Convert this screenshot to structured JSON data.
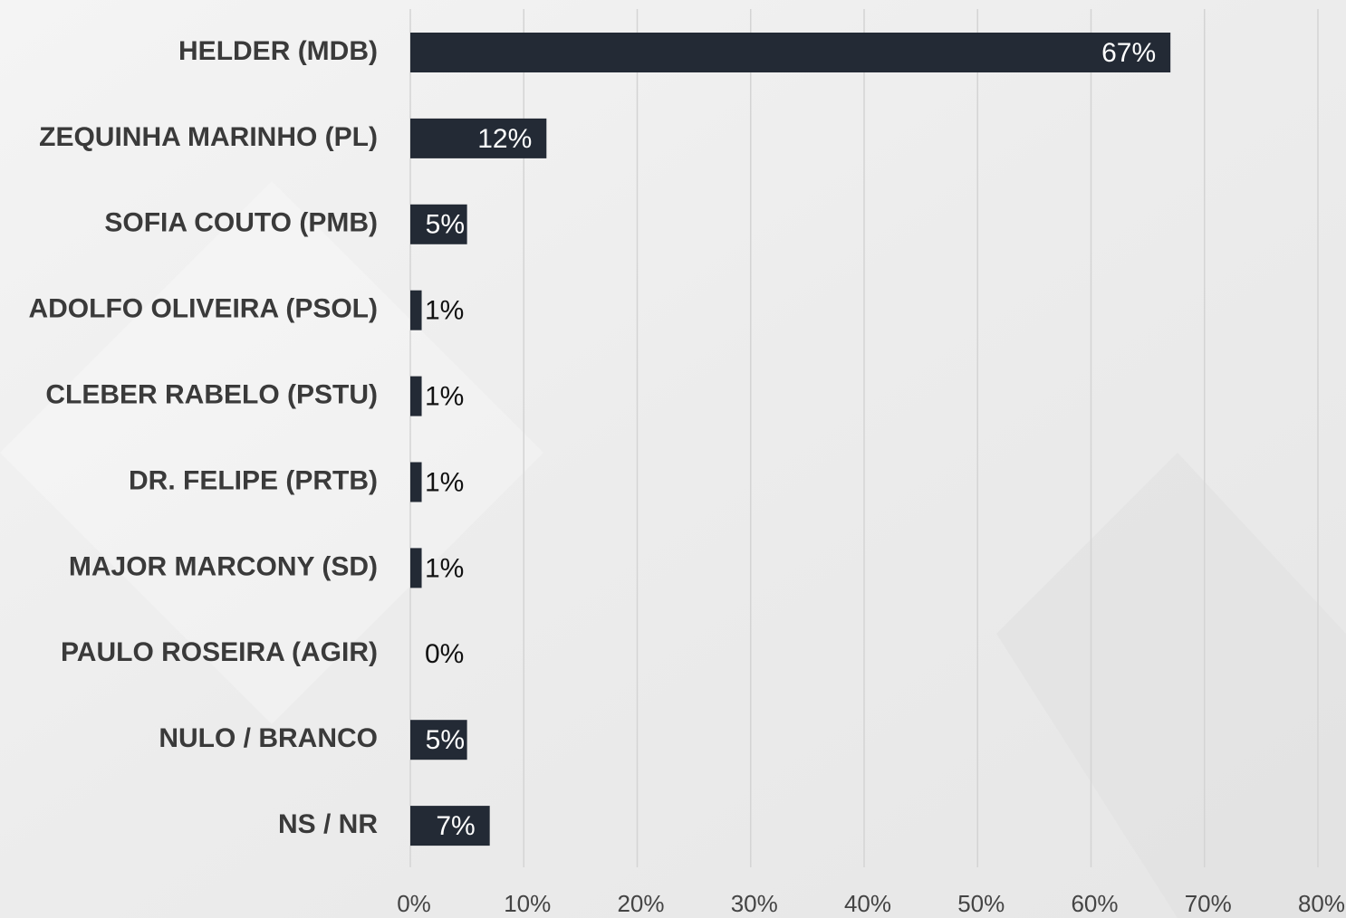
{
  "chart_data": {
    "type": "bar",
    "orientation": "horizontal",
    "categories": [
      "HELDER (MDB)",
      "ZEQUINHA MARINHO (PL)",
      "SOFIA COUTO (PMB)",
      "ADOLFO OLIVEIRA (PSOL)",
      "CLEBER RABELO (PSTU)",
      "DR. FELIPE (PRTB)",
      "MAJOR MARCONY (SD)",
      "PAULO ROSEIRA (AGIR)",
      "NULO / BRANCO",
      "NS / NR"
    ],
    "values": [
      67,
      12,
      5,
      1,
      1,
      1,
      1,
      0,
      5,
      7
    ],
    "value_labels": [
      "67%",
      "12%",
      "5%",
      "1%",
      "1%",
      "1%",
      "1%",
      "0%",
      "5%",
      "7%"
    ],
    "color": "#232a35",
    "xlim": [
      0,
      80
    ],
    "xticks": [
      {
        "value": 0,
        "label": "0%"
      },
      {
        "value": 10,
        "label": "10%"
      },
      {
        "value": 20,
        "label": "20%"
      },
      {
        "value": 30,
        "label": "30%"
      },
      {
        "value": 40,
        "label": "40%"
      },
      {
        "value": 50,
        "label": "50%"
      },
      {
        "value": 60,
        "label": "60%"
      },
      {
        "value": 70,
        "label": "70%"
      },
      {
        "value": 80,
        "label": "80%"
      }
    ],
    "grid": true
  }
}
